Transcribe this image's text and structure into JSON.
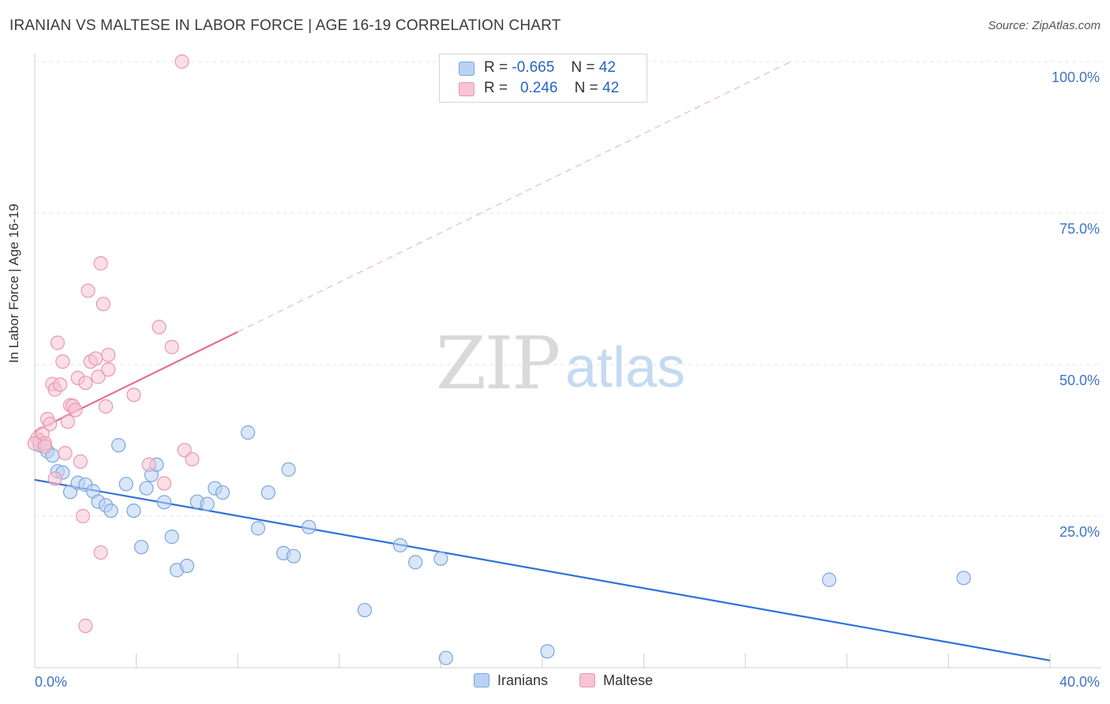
{
  "title": "IRANIAN VS MALTESE IN LABOR FORCE | AGE 16-19 CORRELATION CHART",
  "source": "Source: ZipAtlas.com",
  "watermark": {
    "zip": "ZIP",
    "atlas": "atlas"
  },
  "legend": {
    "rows": [
      {
        "r_label": "R =",
        "r_value": "-0.665",
        "n_label": "N =",
        "n_value": "42"
      },
      {
        "r_label": "R =",
        "r_value": "0.246",
        "n_label": "N =",
        "n_value": "42"
      }
    ]
  },
  "colors": {
    "iranians_fill": "#b9d2f3",
    "iranians_stroke": "#7aa6e0",
    "iranians_line": "#2f72d6",
    "maltese_fill": "#f6c4d3",
    "maltese_stroke": "#e997b2",
    "maltese_line": "#e46d97",
    "tick_label": "#3e74c8",
    "grid": "#e3e3e3"
  },
  "chart_data": {
    "type": "scatter",
    "title": "IRANIAN VS MALTESE IN LABOR FORCE | AGE 16-19 CORRELATION CHART",
    "ylabel": "In Labor Force | Age 16-19",
    "xlim": [
      0,
      40
    ],
    "ylim": [
      0,
      100
    ],
    "x_tick_labels": [
      "0.0%",
      "40.0%"
    ],
    "y_ticks": [
      25,
      50,
      75,
      100
    ],
    "y_tick_labels": [
      "25.0%",
      "50.0%",
      "75.0%",
      "100.0%"
    ],
    "series": [
      {
        "name": "Iranians",
        "r": -0.665,
        "n": 42,
        "trend": {
          "x1": 0,
          "y1": 31.0,
          "x2": 40,
          "y2": 1.2,
          "dashed_to": null
        },
        "points": [
          [
            0.2,
            36.7
          ],
          [
            0.5,
            35.7
          ],
          [
            0.7,
            35.0
          ],
          [
            0.9,
            32.4
          ],
          [
            1.1,
            32.2
          ],
          [
            1.4,
            29.0
          ],
          [
            1.7,
            30.5
          ],
          [
            2.0,
            30.2
          ],
          [
            2.3,
            29.1
          ],
          [
            2.5,
            27.4
          ],
          [
            2.8,
            26.8
          ],
          [
            3.0,
            25.9
          ],
          [
            3.3,
            36.7
          ],
          [
            3.6,
            30.3
          ],
          [
            3.9,
            25.9
          ],
          [
            4.2,
            19.9
          ],
          [
            4.4,
            29.6
          ],
          [
            4.6,
            31.8
          ],
          [
            4.8,
            33.5
          ],
          [
            5.1,
            27.3
          ],
          [
            5.4,
            21.6
          ],
          [
            5.6,
            16.1
          ],
          [
            6.0,
            16.8
          ],
          [
            6.4,
            27.4
          ],
          [
            6.8,
            27.0
          ],
          [
            7.1,
            29.6
          ],
          [
            7.4,
            28.9
          ],
          [
            8.4,
            38.8
          ],
          [
            8.8,
            23.0
          ],
          [
            9.2,
            28.9
          ],
          [
            9.8,
            18.9
          ],
          [
            10.0,
            32.7
          ],
          [
            10.2,
            18.4
          ],
          [
            10.8,
            23.2
          ],
          [
            13.0,
            9.5
          ],
          [
            14.4,
            20.2
          ],
          [
            15.0,
            17.4
          ],
          [
            16.0,
            18.0
          ],
          [
            16.2,
            1.6
          ],
          [
            20.2,
            2.7
          ],
          [
            31.3,
            14.5
          ],
          [
            36.6,
            14.8
          ]
        ]
      },
      {
        "name": "Maltese",
        "r": 0.246,
        "n": 42,
        "trend": {
          "x1": 0,
          "y1": 39.0,
          "x2": 8.0,
          "y2": 55.4,
          "dashed_to": [
            29.8,
            100
          ]
        },
        "points": [
          [
            0.1,
            37.8
          ],
          [
            0.2,
            37.4
          ],
          [
            0.3,
            38.6
          ],
          [
            0.4,
            37.0
          ],
          [
            0.5,
            41.0
          ],
          [
            0.6,
            40.2
          ],
          [
            0.7,
            46.8
          ],
          [
            0.8,
            45.9
          ],
          [
            0.8,
            31.2
          ],
          [
            0.9,
            53.6
          ],
          [
            1.0,
            46.7
          ],
          [
            1.1,
            50.5
          ],
          [
            1.2,
            35.4
          ],
          [
            1.3,
            40.6
          ],
          [
            1.4,
            43.3
          ],
          [
            1.5,
            43.2
          ],
          [
            1.6,
            42.5
          ],
          [
            1.7,
            47.8
          ],
          [
            1.8,
            34.0
          ],
          [
            1.9,
            25.0
          ],
          [
            2.0,
            47.0
          ],
          [
            2.0,
            6.9
          ],
          [
            2.1,
            62.2
          ],
          [
            2.2,
            50.5
          ],
          [
            2.4,
            51.0
          ],
          [
            2.5,
            48.0
          ],
          [
            2.6,
            66.7
          ],
          [
            2.6,
            19.0
          ],
          [
            2.7,
            60.0
          ],
          [
            2.8,
            43.1
          ],
          [
            2.9,
            49.2
          ],
          [
            2.9,
            51.6
          ],
          [
            3.9,
            45.0
          ],
          [
            4.5,
            33.5
          ],
          [
            4.9,
            56.2
          ],
          [
            5.1,
            30.4
          ],
          [
            5.4,
            52.9
          ],
          [
            5.8,
            100.0
          ],
          [
            5.9,
            35.9
          ],
          [
            6.2,
            34.4
          ],
          [
            0.0,
            37.0
          ],
          [
            0.4,
            36.5
          ]
        ]
      }
    ],
    "legend_bottom": [
      "Iranians",
      "Maltese"
    ]
  }
}
